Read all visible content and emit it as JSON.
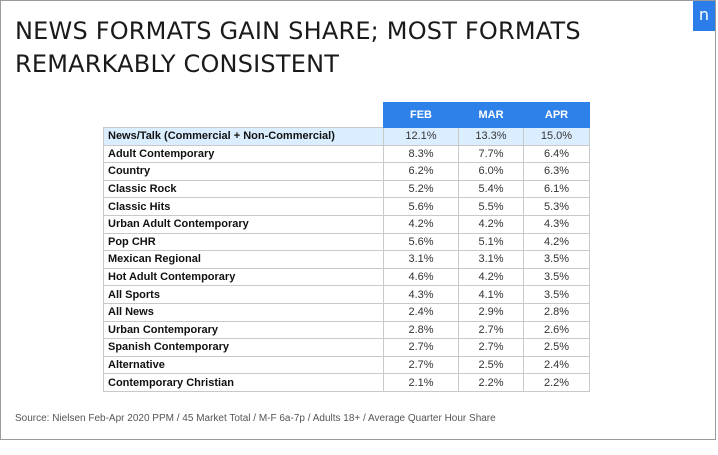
{
  "title_line1": "NEWS FORMATS GAIN SHARE; MOST FORMATS",
  "title_line2": "REMARKABLY CONSISTENT",
  "logo_text": "n",
  "source": "Source: Nielsen Feb-Apr 2020 PPM / 45 Market Total / M-F 6a-7p / Adults 18+ / Average Quarter Hour Share",
  "colors": {
    "header": "#2e81e8",
    "highlight": "#dbeeff",
    "logo": "#2b7de9"
  },
  "chart_data": {
    "type": "table",
    "columns": [
      "FEB",
      "MAR",
      "APR"
    ],
    "rows": [
      {
        "format": "News/Talk (Commercial + Non-Commercial)",
        "values": [
          "12.1%",
          "13.3%",
          "15.0%"
        ],
        "highlight": true
      },
      {
        "format": "Adult Contemporary",
        "values": [
          "8.3%",
          "7.7%",
          "6.4%"
        ]
      },
      {
        "format": "Country",
        "values": [
          "6.2%",
          "6.0%",
          "6.3%"
        ]
      },
      {
        "format": "Classic Rock",
        "values": [
          "5.2%",
          "5.4%",
          "6.1%"
        ]
      },
      {
        "format": "Classic Hits",
        "values": [
          "5.6%",
          "5.5%",
          "5.3%"
        ]
      },
      {
        "format": "Urban Adult Contemporary",
        "values": [
          "4.2%",
          "4.2%",
          "4.3%"
        ]
      },
      {
        "format": "Pop CHR",
        "values": [
          "5.6%",
          "5.1%",
          "4.2%"
        ]
      },
      {
        "format": "Mexican Regional",
        "values": [
          "3.1%",
          "3.1%",
          "3.5%"
        ]
      },
      {
        "format": "Hot Adult Contemporary",
        "values": [
          "4.6%",
          "4.2%",
          "3.5%"
        ]
      },
      {
        "format": "All Sports",
        "values": [
          "4.3%",
          "4.1%",
          "3.5%"
        ]
      },
      {
        "format": "All News",
        "values": [
          "2.4%",
          "2.9%",
          "2.8%"
        ]
      },
      {
        "format": "Urban Contemporary",
        "values": [
          "2.8%",
          "2.7%",
          "2.6%"
        ]
      },
      {
        "format": "Spanish Contemporary",
        "values": [
          "2.7%",
          "2.7%",
          "2.5%"
        ]
      },
      {
        "format": "Alternative",
        "values": [
          "2.7%",
          "2.5%",
          "2.4%"
        ]
      },
      {
        "format": "Contemporary Christian",
        "values": [
          "2.1%",
          "2.2%",
          "2.2%"
        ]
      }
    ]
  }
}
